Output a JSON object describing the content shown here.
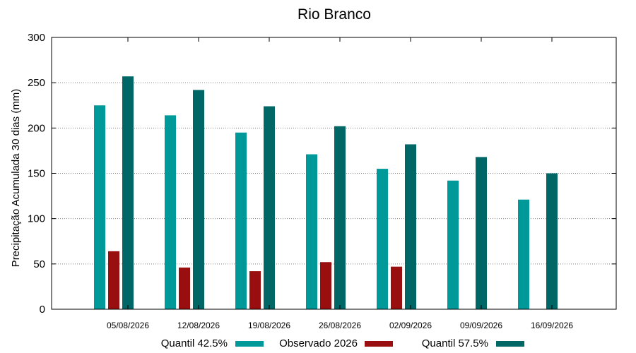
{
  "chart_data": {
    "type": "bar",
    "title": "Rio Branco",
    "ylabel": "Precipitação Acumulada 30 dias (mm)",
    "xlabel": "",
    "ylim": [
      0,
      300
    ],
    "yticks": [
      0,
      50,
      100,
      150,
      200,
      250,
      300
    ],
    "grid": "horizontal dotted",
    "legend_position": "bottom",
    "categories": [
      "05/08/2026",
      "12/08/2026",
      "19/08/2026",
      "26/08/2026",
      "02/09/2026",
      "09/09/2026",
      "16/09/2026"
    ],
    "series": [
      {
        "name": "Quantil 42.5%",
        "color": "#009999",
        "values": [
          225,
          214,
          195,
          171,
          155,
          142,
          121
        ]
      },
      {
        "name": "Observado 2026",
        "color": "#990f0f",
        "values": [
          64,
          46,
          42,
          52,
          47,
          null,
          null
        ]
      },
      {
        "name": "Quantil 57.5%",
        "color": "#006666",
        "values": [
          257,
          242,
          224,
          202,
          182,
          168,
          150
        ]
      }
    ]
  }
}
